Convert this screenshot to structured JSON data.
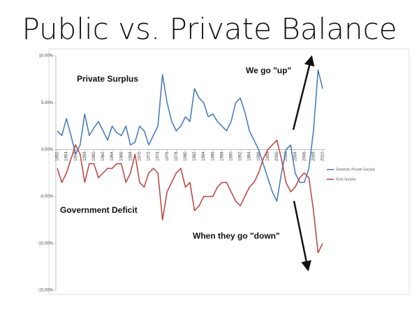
{
  "chart_data": {
    "type": "line",
    "title": "Public vs. Private Balance",
    "x": [
      1952,
      1953,
      1954,
      1955,
      1956,
      1957,
      1958,
      1959,
      1960,
      1961,
      1962,
      1963,
      1964,
      1965,
      1966,
      1967,
      1968,
      1969,
      1970,
      1971,
      1972,
      1973,
      1974,
      1975,
      1976,
      1977,
      1978,
      1979,
      1980,
      1981,
      1982,
      1983,
      1984,
      1985,
      1986,
      1987,
      1988,
      1989,
      1990,
      1991,
      1992,
      1993,
      1994,
      1995,
      1996,
      1997,
      1998,
      1999,
      2000,
      2001,
      2002,
      2003,
      2004,
      2005,
      2006,
      2007,
      2008,
      2009,
      2010
    ],
    "series": [
      {
        "name": "Domestic Private Surplus",
        "color": "#4a7ebb",
        "values": [
          2.0,
          1.5,
          3.3,
          1.5,
          -0.5,
          0.5,
          3.8,
          1.5,
          2.3,
          3.0,
          2.0,
          1.0,
          2.5,
          1.8,
          1.5,
          2.5,
          0.5,
          0.8,
          2.5,
          2.0,
          0.5,
          1.5,
          2.5,
          8.0,
          5.0,
          3.0,
          2.0,
          2.5,
          3.5,
          3.0,
          6.5,
          5.5,
          5.0,
          3.5,
          3.8,
          3.0,
          2.5,
          2.0,
          3.0,
          5.0,
          5.5,
          4.0,
          2.0,
          1.0,
          0.0,
          -1.5,
          -3.0,
          -4.5,
          -5.5,
          -2.5,
          0.0,
          0.5,
          -2.5,
          -3.5,
          -3.5,
          -2.0,
          2.0,
          8.5,
          6.5
        ]
      },
      {
        "name": "Govt Surplus",
        "color": "#be4b48",
        "values": [
          -2.0,
          -3.5,
          -2.5,
          -1.0,
          0.5,
          -0.5,
          -3.5,
          -1.5,
          -1.5,
          -3.0,
          -2.5,
          -2.0,
          -2.0,
          -1.5,
          -1.5,
          -3.5,
          -2.5,
          -0.5,
          -3.5,
          -4.0,
          -2.5,
          -2.0,
          -2.5,
          -7.5,
          -4.5,
          -3.5,
          -2.5,
          -2.0,
          -4.0,
          -3.5,
          -6.5,
          -6.0,
          -5.0,
          -5.0,
          -5.0,
          -4.0,
          -3.5,
          -3.5,
          -4.5,
          -5.5,
          -6.0,
          -5.0,
          -4.0,
          -3.5,
          -2.5,
          -1.0,
          0.0,
          0.5,
          1.0,
          -1.0,
          -3.5,
          -4.5,
          -4.0,
          -3.0,
          -2.5,
          -3.0,
          -6.5,
          -11.0,
          -10.0
        ]
      }
    ],
    "xlim": [
      1952,
      2010
    ],
    "xticks": [
      1952,
      1954,
      1956,
      1958,
      1960,
      1962,
      1964,
      1966,
      1968,
      1970,
      1972,
      1974,
      1976,
      1978,
      1980,
      1982,
      1984,
      1986,
      1988,
      1990,
      1992,
      1994,
      1996,
      1998,
      2000,
      2002,
      2004,
      2006,
      2008,
      2010
    ],
    "ylim": [
      -15,
      10
    ],
    "yticks": [
      {
        "value": 10,
        "label": "10.00%"
      },
      {
        "value": 5,
        "label": "5.00%"
      },
      {
        "value": 0,
        "label": "0.00%"
      },
      {
        "value": -5,
        "label": "-5.00%"
      },
      {
        "value": -10,
        "label": "-10.00%"
      },
      {
        "value": -15,
        "label": "-15.00%"
      }
    ],
    "grid": false,
    "annotations": [
      "Private Surplus",
      "Government Deficit",
      "We go \"up\"",
      "When they go \"down\""
    ]
  }
}
